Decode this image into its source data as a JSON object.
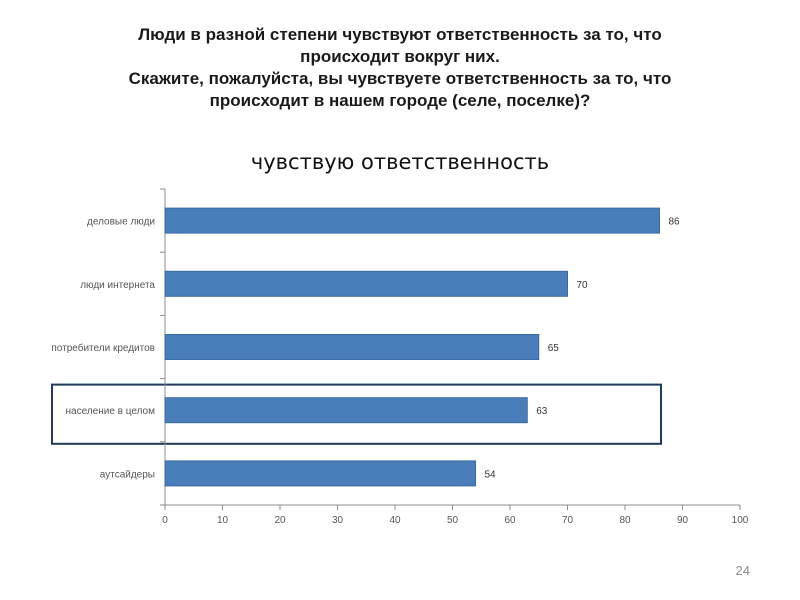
{
  "slide": {
    "title_lines": [
      "Люди в разной степени чувствуют ответственность за то, что",
      "происходит вокруг них.",
      "Скажите, пожалуйста,  вы чувствуете ответственность за то, что",
      "происходит  в нашем городе (селе, поселке)?"
    ],
    "page_number": "24"
  },
  "chart_data": {
    "type": "bar",
    "orientation": "horizontal",
    "title": "чувствую ответственность",
    "categories": [
      "деловые люди",
      "люди интернета",
      "потребители кредитов",
      "население в целом",
      "аутсайдеры"
    ],
    "values": [
      86,
      70,
      65,
      63,
      54
    ],
    "xlim": [
      0,
      100
    ],
    "xticks": [
      0,
      10,
      20,
      30,
      40,
      50,
      60,
      70,
      80,
      90,
      100
    ],
    "highlighted_category": "население в целом",
    "bar_color": "#4a7ebb",
    "bar_border_color": "#3a6aa0",
    "highlight_border_color": "#1f3a5a",
    "grid": false,
    "legend": "none"
  }
}
